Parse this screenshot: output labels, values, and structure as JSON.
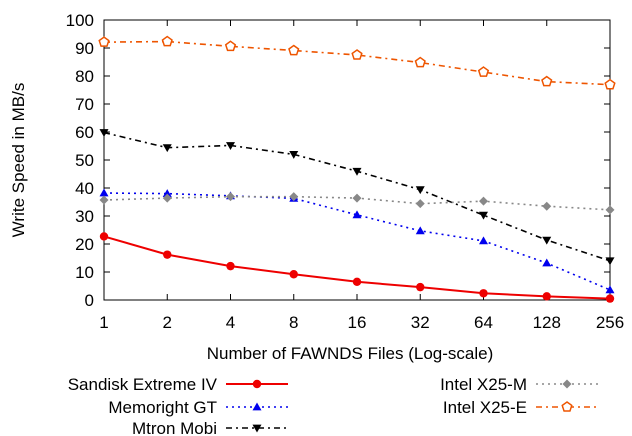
{
  "chart_data": {
    "type": "line",
    "xlabel": "Number of FAWNDS Files (Log-scale)",
    "ylabel": "Write Speed in MB/s",
    "x_scale": "log2",
    "categories": [
      "1",
      "2",
      "4",
      "8",
      "16",
      "32",
      "64",
      "128",
      "256"
    ],
    "ylim": [
      0,
      100
    ],
    "yticks": [
      0,
      10,
      20,
      30,
      40,
      50,
      60,
      70,
      80,
      90,
      100
    ],
    "grid": false,
    "legend_position": "bottom",
    "series": [
      {
        "name": "Sandisk Extreme IV",
        "color": "#ee0000",
        "line": "solid",
        "marker": "filled-circle",
        "values": [
          22.7,
          16.2,
          12.1,
          9.2,
          6.5,
          4.6,
          2.4,
          1.3,
          0.5
        ]
      },
      {
        "name": "Memoright GT",
        "color": "#0000ee",
        "line": "dotted",
        "marker": "filled-triangle-up",
        "values": [
          38.2,
          38.0,
          37.2,
          36.3,
          30.4,
          24.7,
          21.1,
          13.2,
          3.6
        ]
      },
      {
        "name": "Mtron Mobi",
        "color": "#000000",
        "line": "dash-dot",
        "marker": "filled-triangle-down",
        "values": [
          59.8,
          54.4,
          55.2,
          52.0,
          46.0,
          39.4,
          30.3,
          21.4,
          14.0
        ]
      },
      {
        "name": "Intel X25-M",
        "color": "#888888",
        "line": "dotted",
        "marker": "filled-diamond",
        "values": [
          35.7,
          36.4,
          36.9,
          36.9,
          36.4,
          34.4,
          35.3,
          33.5,
          32.2
        ]
      },
      {
        "name": "Intel X25-E",
        "color": "#ee5500",
        "line": "dash-dot",
        "marker": "open-pentagon",
        "values": [
          92.1,
          92.3,
          90.6,
          89.1,
          87.5,
          84.8,
          81.4,
          78.0,
          76.9
        ]
      }
    ]
  }
}
